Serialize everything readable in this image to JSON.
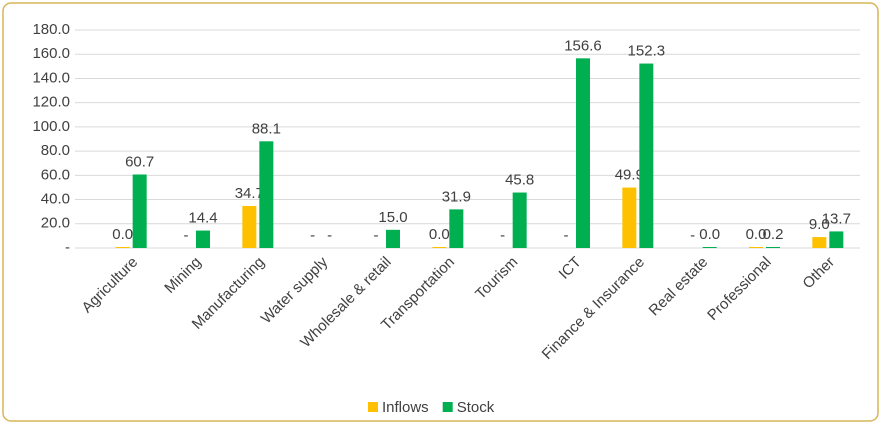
{
  "chart_data": {
    "type": "bar",
    "categories": [
      "Agriculture",
      "Mining",
      "Manufacturing",
      "Water supply",
      "Wholesale & retail",
      "Transportation",
      "Tourism",
      "ICT",
      "Finance & Insurance",
      "Real estate",
      "Professional",
      "Other"
    ],
    "series": [
      {
        "name": "Inflows",
        "color": "#ffc000",
        "values": [
          0,
          null,
          34.7,
          null,
          null,
          0,
          null,
          null,
          49.9,
          null,
          0,
          9
        ],
        "value_labels": [
          "0.0",
          "-",
          "34.7",
          "-",
          "-",
          "0.0",
          "-",
          "-",
          "49.9",
          "-",
          "0.0",
          "9.0"
        ]
      },
      {
        "name": "Stock",
        "color": "#00b050",
        "values": [
          60.7,
          14.4,
          88.1,
          null,
          15,
          31.9,
          45.8,
          156.6,
          152.3,
          0,
          0.2,
          13.7
        ],
        "value_labels": [
          "60.7",
          "14.4",
          "88.1",
          "-",
          "15.0",
          "31.9",
          "45.8",
          "156.6",
          "152.3",
          "0.0",
          "0.2",
          "13.7"
        ]
      }
    ],
    "ylim": [
      0,
      180
    ],
    "yticks": [
      {
        "value": 0,
        "label": "-"
      },
      {
        "value": 20,
        "label": "20.0"
      },
      {
        "value": 40,
        "label": "40.0"
      },
      {
        "value": 60,
        "label": "60.0"
      },
      {
        "value": 80,
        "label": "80.0"
      },
      {
        "value": 100,
        "label": "100.0"
      },
      {
        "value": 120,
        "label": "120.0"
      },
      {
        "value": 140,
        "label": "140.0"
      },
      {
        "value": 160,
        "label": "160.0"
      },
      {
        "value": 180,
        "label": "180.0"
      }
    ],
    "grid": true,
    "legend": "bottom"
  }
}
